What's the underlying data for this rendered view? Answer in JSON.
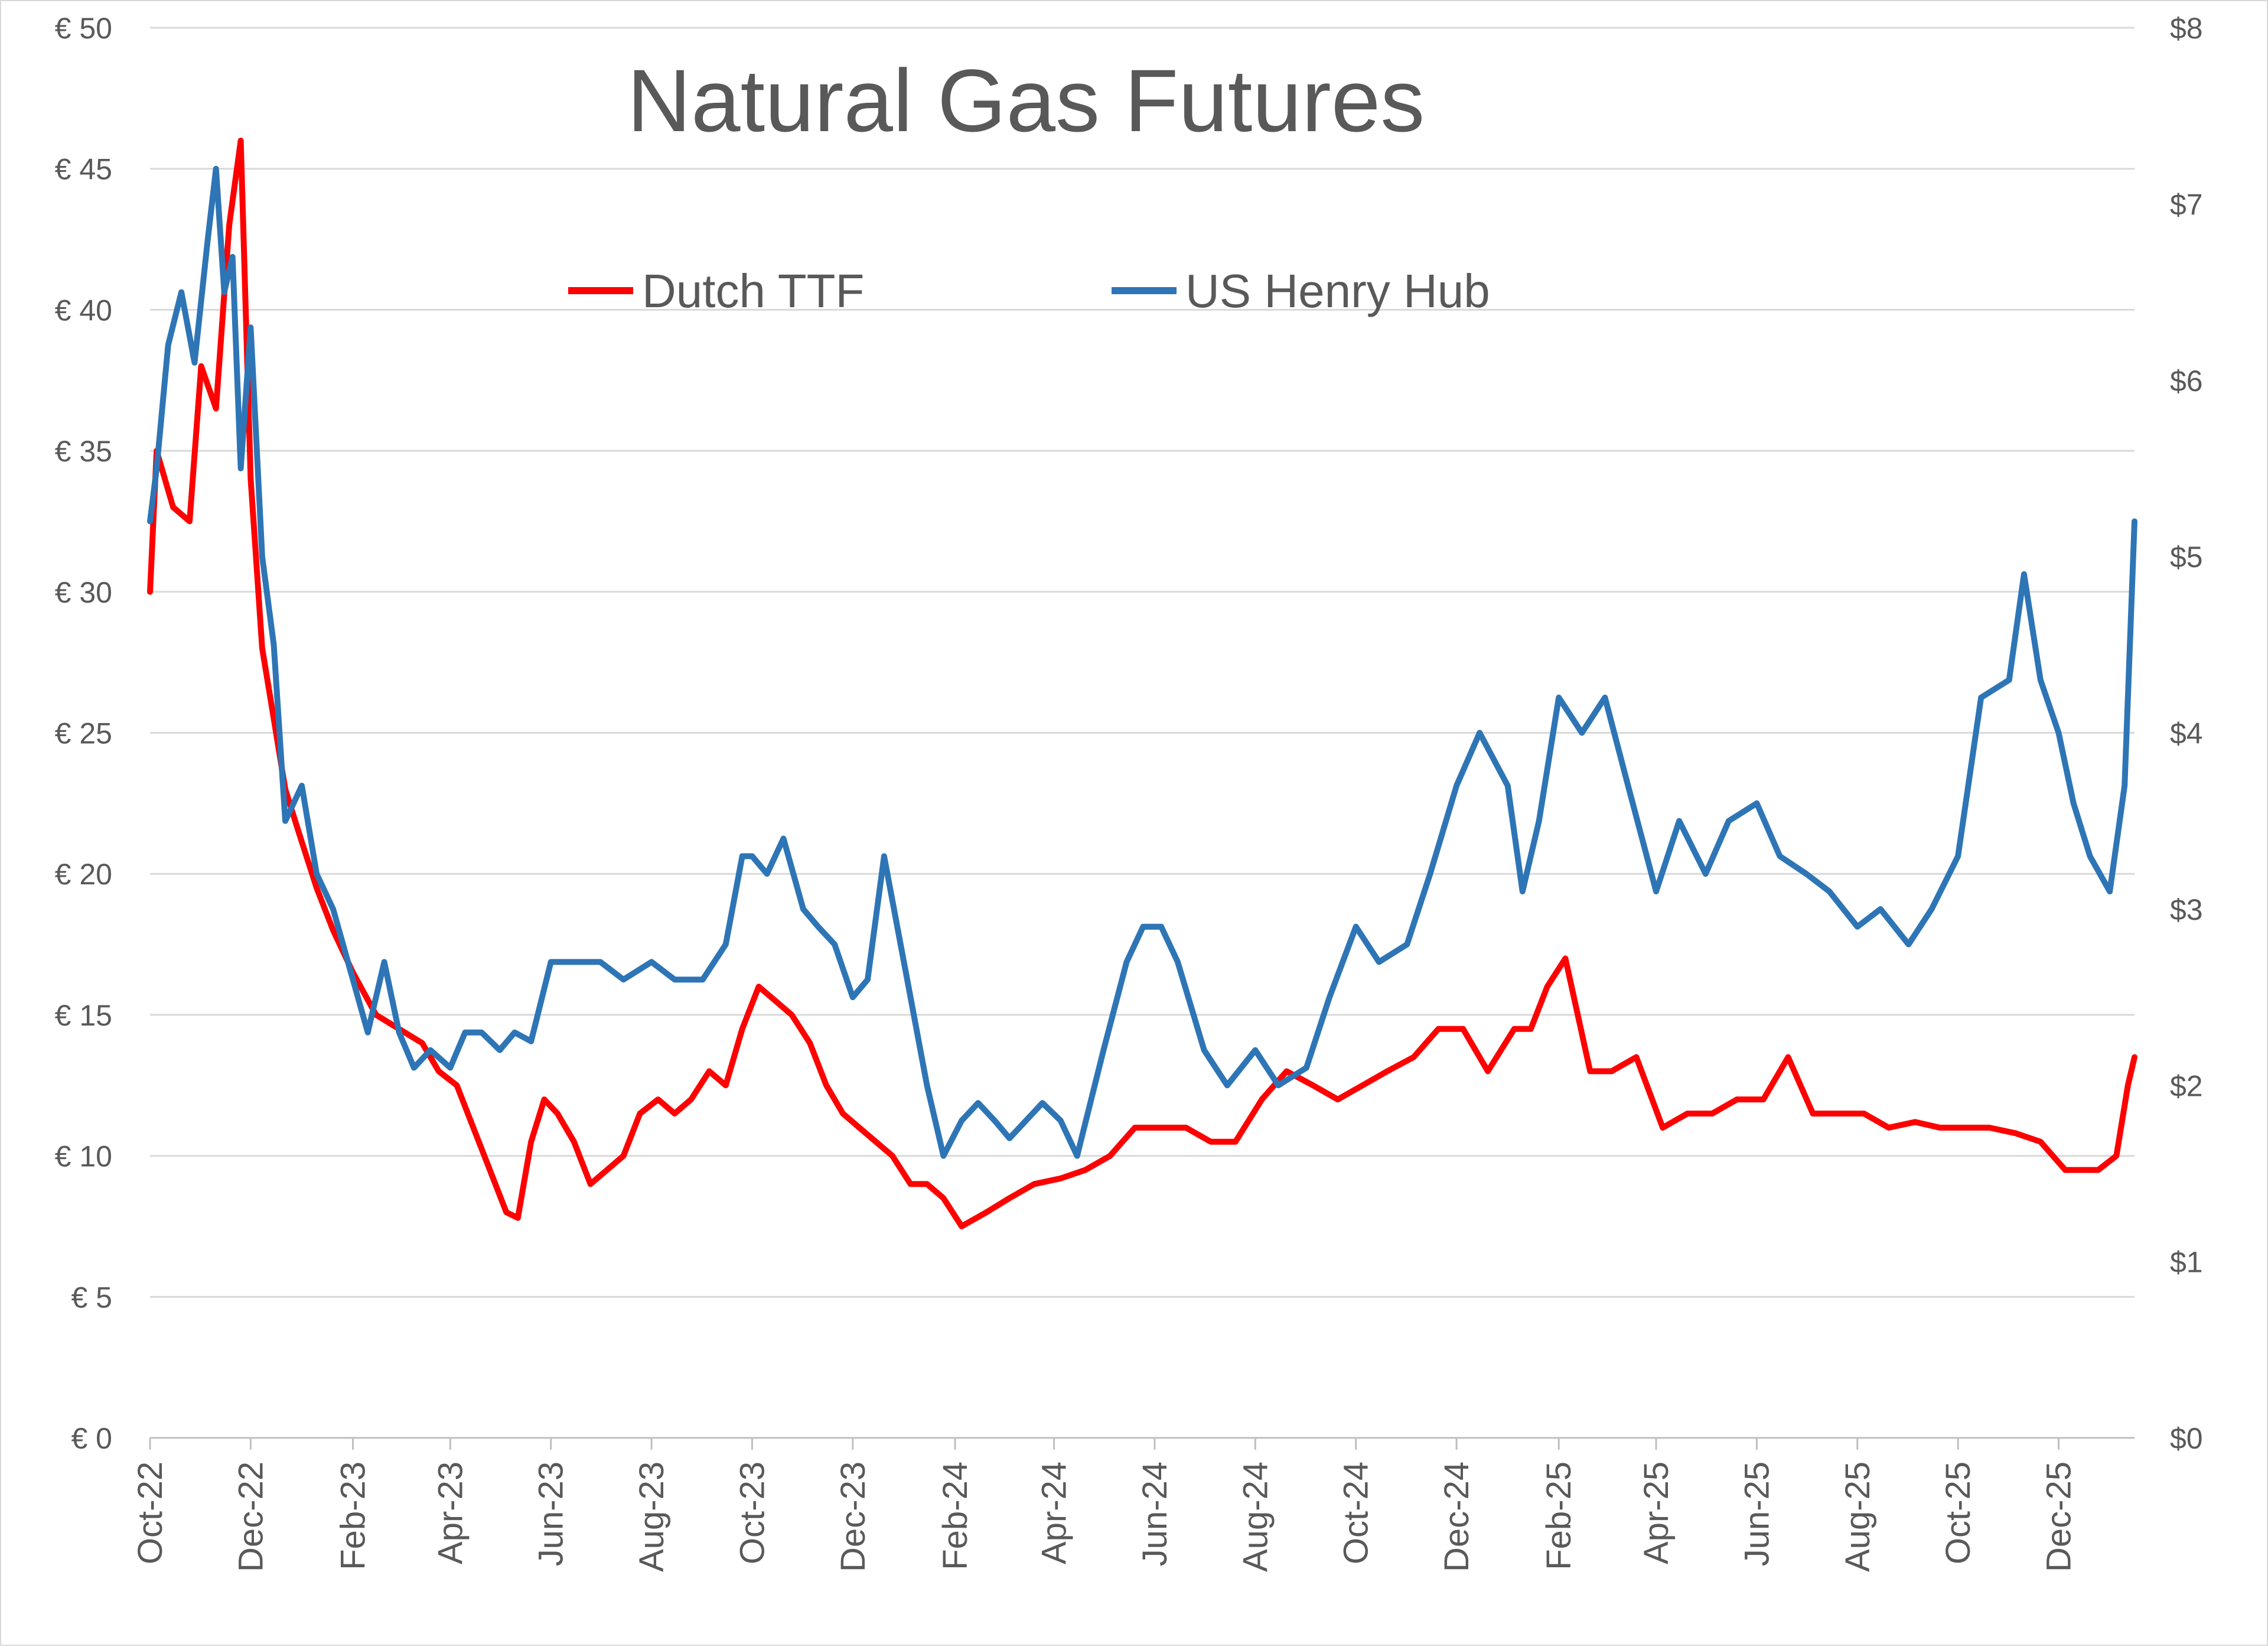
{
  "chart_data": {
    "type": "line",
    "title": "Natural Gas Futures",
    "legend_placement": "top-center",
    "grid": true,
    "ylim_left": [
      0,
      50
    ],
    "ylim_right": [
      0,
      8
    ],
    "y_left_ticks": [
      "€ 0",
      "€ 5",
      "€ 10",
      "€ 15",
      "€ 20",
      "€ 25",
      "€ 30",
      "€ 35",
      "€ 40",
      "€ 45",
      "€ 50"
    ],
    "y_right_ticks": [
      "$0",
      "$1",
      "$2",
      "$3",
      "$4",
      "$5",
      "$6",
      "$7",
      "$8"
    ],
    "x_ticks": [
      "Oct-22",
      "Dec-22",
      "Feb-23",
      "Apr-23",
      "Jun-23",
      "Aug-23",
      "Oct-23",
      "Dec-23",
      "Feb-24",
      "Apr-24",
      "Jun-24",
      "Aug-24",
      "Oct-24",
      "Dec-24",
      "Feb-25",
      "Apr-25",
      "Jun-25",
      "Aug-25",
      "Oct-25",
      "Dec-25"
    ],
    "colors": {
      "ttf": "#ff0000",
      "henry_hub": "#2e75b6",
      "grid": "#d9d9d9",
      "text": "#595959"
    },
    "series": [
      {
        "name": "Dutch TTF",
        "axis": "left",
        "x": [
          "2022-10-01",
          "2022-10-05",
          "2022-10-15",
          "2022-10-25",
          "2022-11-01",
          "2022-11-10",
          "2022-11-18",
          "2022-11-25",
          "2022-12-01",
          "2022-12-08",
          "2022-12-15",
          "2022-12-22",
          "2022-12-30",
          "2023-01-10",
          "2023-01-20",
          "2023-02-01",
          "2023-02-15",
          "2023-03-01",
          "2023-03-15",
          "2023-03-25",
          "2023-04-05",
          "2023-04-15",
          "2023-04-25",
          "2023-05-05",
          "2023-05-12",
          "2023-05-20",
          "2023-05-28",
          "2023-06-05",
          "2023-06-15",
          "2023-06-25",
          "2023-07-05",
          "2023-07-15",
          "2023-07-25",
          "2023-08-05",
          "2023-08-15",
          "2023-08-25",
          "2023-09-05",
          "2023-09-15",
          "2023-09-25",
          "2023-10-05",
          "2023-10-15",
          "2023-10-25",
          "2023-11-05",
          "2023-11-15",
          "2023-11-25",
          "2023-12-05",
          "2023-12-15",
          "2023-12-25",
          "2024-01-05",
          "2024-01-15",
          "2024-01-25",
          "2024-02-05",
          "2024-02-20",
          "2024-03-05",
          "2024-03-20",
          "2024-04-05",
          "2024-04-20",
          "2024-05-05",
          "2024-05-20",
          "2024-06-05",
          "2024-06-20",
          "2024-07-05",
          "2024-07-20",
          "2024-08-05",
          "2024-08-20",
          "2024-09-05",
          "2024-09-20",
          "2024-10-05",
          "2024-10-20",
          "2024-11-05",
          "2024-11-20",
          "2024-12-05",
          "2024-12-20",
          "2025-01-05",
          "2025-01-15",
          "2025-01-25",
          "2025-02-05",
          "2025-02-20",
          "2025-03-05",
          "2025-03-20",
          "2025-04-05",
          "2025-04-20",
          "2025-05-05",
          "2025-05-20",
          "2025-06-05",
          "2025-06-20",
          "2025-07-05",
          "2025-07-20",
          "2025-08-05",
          "2025-08-20",
          "2025-09-05",
          "2025-09-20",
          "2025-10-05",
          "2025-10-20",
          "2025-11-05",
          "2025-11-20",
          "2025-12-05",
          "2025-12-15",
          "2025-12-25",
          "2026-01-05",
          "2026-01-12",
          "2026-01-16"
        ],
        "values": [
          30.0,
          35.0,
          33.0,
          32.5,
          38.0,
          36.5,
          43.0,
          46.0,
          34.0,
          28.0,
          25.5,
          23.0,
          21.5,
          19.5,
          18.0,
          16.5,
          15.0,
          14.5,
          14.0,
          13.0,
          12.5,
          11.0,
          9.5,
          8.0,
          7.8,
          10.5,
          12.0,
          11.5,
          10.5,
          9.0,
          9.5,
          10.0,
          11.5,
          12.0,
          11.5,
          12.0,
          13.0,
          12.5,
          14.5,
          16.0,
          15.5,
          15.0,
          14.0,
          12.5,
          11.5,
          11.0,
          10.5,
          10.0,
          9.0,
          9.0,
          8.5,
          7.5,
          8.0,
          8.5,
          9.0,
          9.2,
          9.5,
          10.0,
          11.0,
          11.0,
          11.0,
          10.5,
          10.5,
          12.0,
          13.0,
          12.5,
          12.0,
          12.5,
          13.0,
          13.5,
          14.5,
          14.5,
          13.0,
          14.5,
          14.5,
          16.0,
          17.0,
          13.0,
          13.0,
          13.5,
          11.0,
          11.5,
          11.5,
          12.0,
          12.0,
          13.5,
          11.5,
          11.5,
          11.5,
          11.0,
          11.2,
          11.0,
          11.0,
          11.0,
          10.8,
          10.5,
          9.5,
          9.5,
          9.5,
          10.0,
          12.5,
          13.5
        ]
      },
      {
        "name": "US Henry Hub",
        "axis": "right",
        "x": [
          "2022-10-01",
          "2022-10-05",
          "2022-10-12",
          "2022-10-20",
          "2022-10-28",
          "2022-11-05",
          "2022-11-10",
          "2022-11-15",
          "2022-11-20",
          "2022-11-25",
          "2022-12-01",
          "2022-12-08",
          "2022-12-15",
          "2022-12-22",
          "2023-01-01",
          "2023-01-10",
          "2023-01-20",
          "2023-02-01",
          "2023-02-10",
          "2023-02-20",
          "2023-03-01",
          "2023-03-10",
          "2023-03-20",
          "2023-04-01",
          "2023-04-10",
          "2023-04-20",
          "2023-05-01",
          "2023-05-10",
          "2023-05-20",
          "2023-06-01",
          "2023-06-15",
          "2023-07-01",
          "2023-07-15",
          "2023-08-01",
          "2023-08-15",
          "2023-09-01",
          "2023-09-15",
          "2023-09-25",
          "2023-10-01",
          "2023-10-10",
          "2023-10-20",
          "2023-11-01",
          "2023-11-10",
          "2023-11-20",
          "2023-12-01",
          "2023-12-10",
          "2023-12-20",
          "2023-12-28",
          "2024-01-05",
          "2024-01-15",
          "2024-01-25",
          "2024-02-05",
          "2024-02-15",
          "2024-02-25",
          "2024-03-05",
          "2024-03-15",
          "2024-03-25",
          "2024-04-05",
          "2024-04-15",
          "2024-05-01",
          "2024-05-15",
          "2024-05-25",
          "2024-06-05",
          "2024-06-15",
          "2024-07-01",
          "2024-07-15",
          "2024-08-01",
          "2024-08-15",
          "2024-09-01",
          "2024-09-15",
          "2024-10-01",
          "2024-10-15",
          "2024-11-01",
          "2024-11-15",
          "2024-12-01",
          "2024-12-15",
          "2025-01-01",
          "2025-01-10",
          "2025-01-20",
          "2025-02-01",
          "2025-02-15",
          "2025-03-01",
          "2025-03-15",
          "2025-04-01",
          "2025-04-15",
          "2025-05-01",
          "2025-05-15",
          "2025-06-01",
          "2025-06-15",
          "2025-07-01",
          "2025-07-15",
          "2025-08-01",
          "2025-08-15",
          "2025-09-01",
          "2025-09-15",
          "2025-10-01",
          "2025-10-15",
          "2025-11-01",
          "2025-11-10",
          "2025-11-20",
          "2025-12-01",
          "2025-12-10",
          "2025-12-20",
          "2026-01-01",
          "2026-01-10",
          "2026-01-16"
        ],
        "values": [
          5.2,
          5.5,
          6.2,
          6.5,
          6.1,
          6.8,
          7.2,
          6.5,
          6.7,
          5.5,
          6.3,
          5.0,
          4.5,
          3.5,
          3.7,
          3.2,
          3.0,
          2.6,
          2.3,
          2.7,
          2.3,
          2.1,
          2.2,
          2.1,
          2.3,
          2.3,
          2.2,
          2.3,
          2.25,
          2.7,
          2.7,
          2.7,
          2.6,
          2.7,
          2.6,
          2.6,
          2.8,
          3.3,
          3.3,
          3.2,
          3.4,
          3.0,
          2.9,
          2.8,
          2.5,
          2.6,
          3.3,
          2.9,
          2.5,
          2.0,
          1.6,
          1.8,
          1.9,
          1.8,
          1.7,
          1.8,
          1.9,
          1.8,
          1.6,
          2.2,
          2.7,
          2.9,
          2.9,
          2.7,
          2.2,
          2.0,
          2.2,
          2.0,
          2.1,
          2.5,
          2.9,
          2.7,
          2.8,
          3.2,
          3.7,
          4.0,
          3.7,
          3.1,
          3.5,
          4.2,
          4.0,
          4.2,
          3.7,
          3.1,
          3.5,
          3.2,
          3.5,
          3.6,
          3.3,
          3.2,
          3.1,
          2.9,
          3.0,
          2.8,
          3.0,
          3.3,
          4.2,
          4.3,
          4.9,
          4.3,
          4.0,
          3.6,
          3.3,
          3.1,
          3.7,
          5.2
        ]
      }
    ]
  }
}
